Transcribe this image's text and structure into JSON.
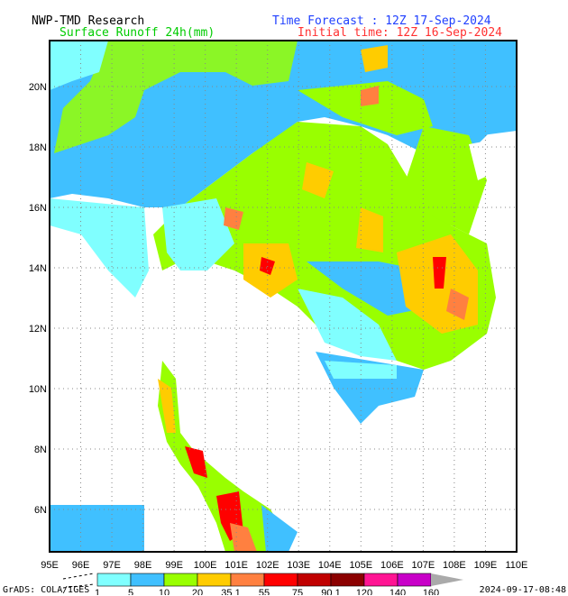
{
  "header": {
    "org": "NWP-TMD Research",
    "variable": "Surface Runoff 24h(mm)",
    "forecast": "Time Forecast : 12Z 17-Sep-2024",
    "initial": "Initial time: 12Z 16-Sep-2024"
  },
  "lat_labels": [
    "20N",
    "18N",
    "16N",
    "14N",
    "12N",
    "10N",
    "8N",
    "6N"
  ],
  "lon_labels": [
    "95E",
    "96E",
    "97E",
    "98E",
    "99E",
    "100E",
    "101E",
    "102E",
    "103E",
    "104E",
    "105E",
    "106E",
    "107E",
    "108E",
    "109E",
    "110E"
  ],
  "legend": {
    "labels": [
      "1",
      "5",
      "10",
      "20",
      "35 1",
      "55",
      "75",
      "90 1",
      "120",
      "140",
      "160"
    ],
    "colors": [
      "#80ffff",
      "#40c0ff",
      "#99ff00",
      "#ffcc00",
      "#ff8040",
      "#ff0000",
      "#c00000",
      "#8b0000",
      "#ff1493",
      "#c800c8",
      "#aaaaaa"
    ]
  },
  "footer": {
    "credit": "GrADS: COLA/IGES",
    "timestamp": "2024-09-17-08:48"
  }
}
